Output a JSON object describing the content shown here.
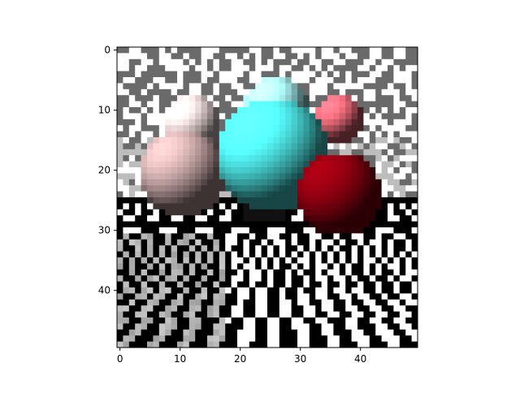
{
  "image": {
    "description_free": true,
    "grid_size": [
      50,
      50
    ],
    "x_axis": {
      "ticks": [
        0,
        10,
        20,
        30,
        40
      ],
      "range": [
        -0.5,
        49.5
      ]
    },
    "y_axis": {
      "ticks": [
        0,
        10,
        20,
        30,
        40
      ],
      "range": [
        -0.5,
        49.5
      ],
      "inverted": true
    },
    "colors": {
      "sky_dark": "#6a6a6a",
      "sky_light": "#ffffff",
      "floor_dark": "#000000",
      "floor_light": "#ffffff",
      "sphere_pink": "#c9a8a8",
      "sphere_cyan": "#4fe6e6",
      "sphere_red": "#8a0010",
      "sphere_salmon": "#e66a78"
    }
  }
}
